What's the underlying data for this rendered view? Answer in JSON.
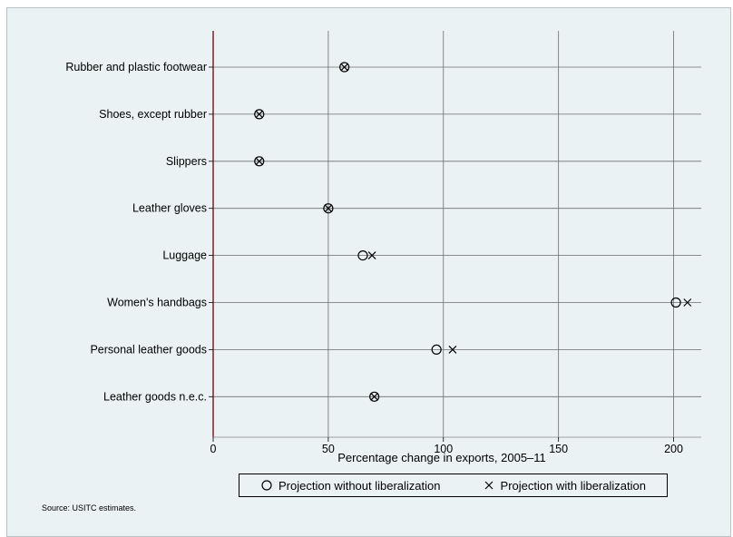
{
  "header": {
    "partial_title": ""
  },
  "chart_data": {
    "type": "scatter",
    "categories": [
      "Rubber and plastic footwear",
      "Shoes, except rubber",
      "Slippers",
      "Leather gloves",
      "Luggage",
      "Women's handbags",
      "Personal leather goods",
      "Leather goods n.e.c."
    ],
    "series": [
      {
        "name": "Projection without liberalization",
        "marker": "circle",
        "values": [
          57,
          20,
          20,
          50,
          65,
          201,
          97,
          70
        ]
      },
      {
        "name": "Projection with liberalization",
        "marker": "x",
        "values": [
          57,
          20,
          20,
          50,
          69,
          206,
          104,
          70
        ]
      }
    ],
    "xlabel": "Percentage change in exports, 2005–11",
    "ylabel": "",
    "xlim": [
      0,
      212
    ],
    "xticks": [
      0,
      50,
      100,
      150,
      200
    ],
    "grid": true,
    "legend_position": "bottom"
  },
  "footer": {
    "source": "Source:  USITC estimates."
  },
  "colors": {
    "background": "#eaf2f3",
    "axis": "#7a1f2b",
    "grid": "#6e6e6e",
    "marker": "#000000"
  }
}
